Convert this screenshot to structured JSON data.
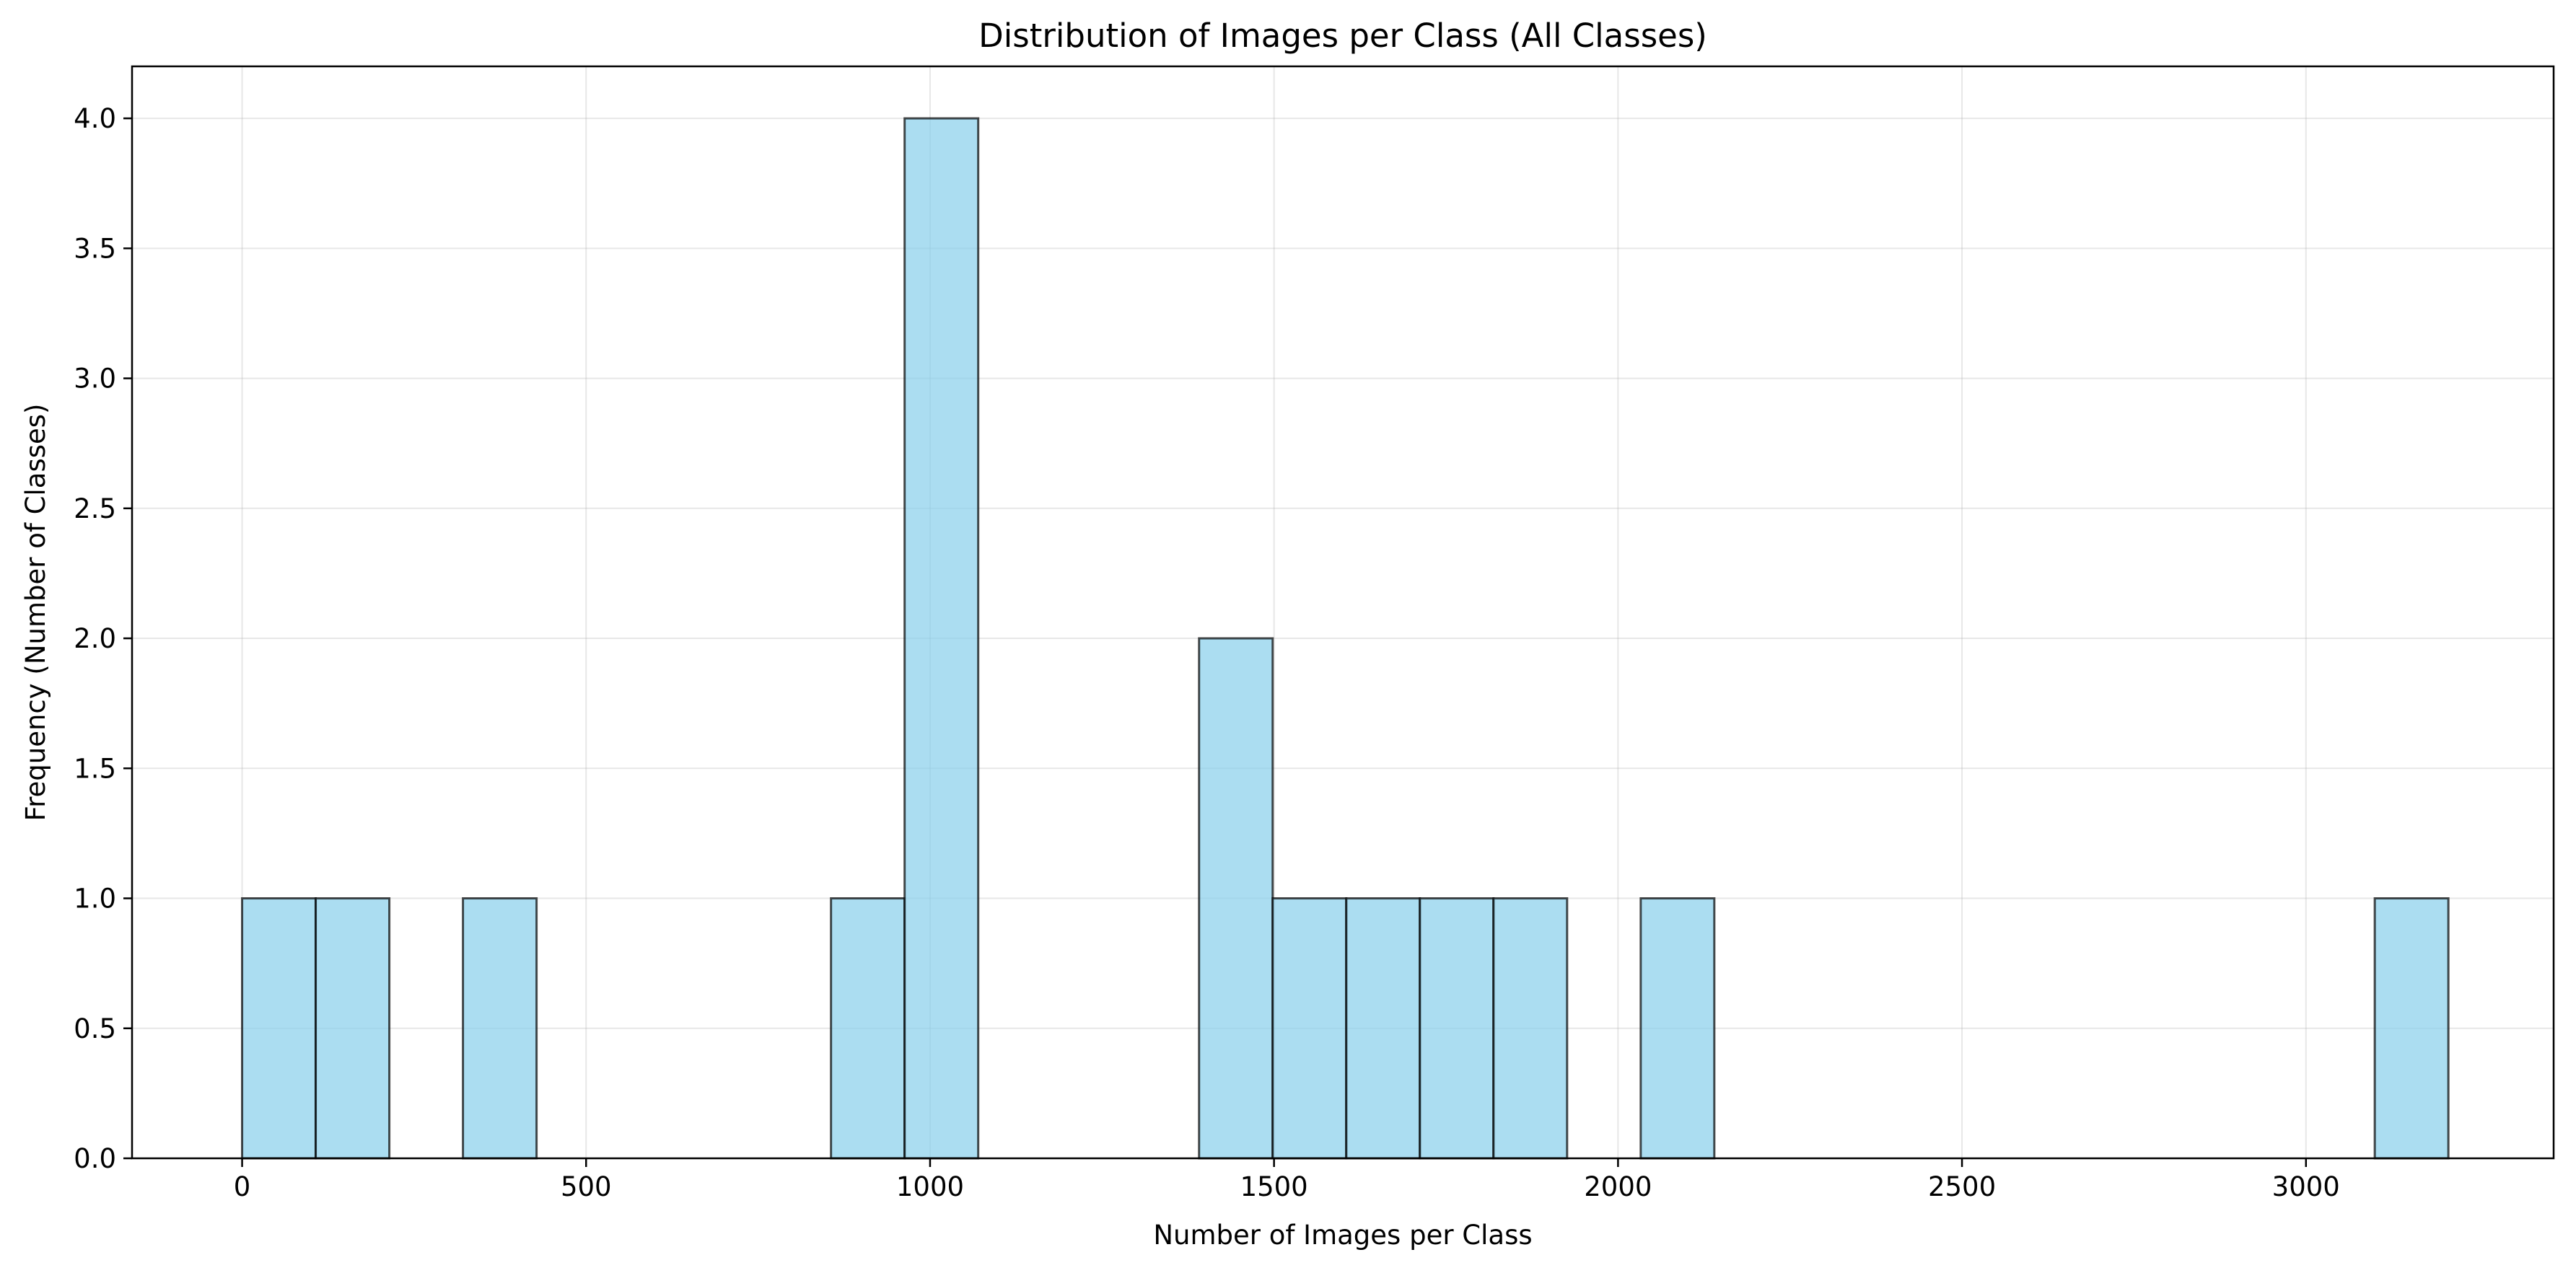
{
  "chart_data": {
    "type": "bar",
    "title": "Distribution of Images per Class (All Classes)",
    "xlabel": "Number of Images per Class",
    "ylabel": "Frequency (Number of Classes)",
    "xlim": [
      -160,
      3360
    ],
    "ylim": [
      0,
      4.2
    ],
    "x_ticks": [
      0,
      500,
      1000,
      1500,
      2000,
      2500,
      3000
    ],
    "x_tick_labels": [
      "0",
      "500",
      "1000",
      "1500",
      "2000",
      "2500",
      "3000"
    ],
    "y_ticks": [
      0,
      0.5,
      1,
      1.5,
      2,
      2.5,
      3,
      3.5,
      4
    ],
    "y_tick_labels": [
      "0.0",
      "0.5",
      "1.0",
      "1.5",
      "2.0",
      "2.5",
      "3.0",
      "3.5",
      "4.0"
    ],
    "grid": true,
    "bar_color": "#87ceeb",
    "edge_color": "#000000",
    "bins": [
      {
        "x0": 0,
        "x1": 107,
        "count": 1
      },
      {
        "x0": 107,
        "x1": 214,
        "count": 1
      },
      {
        "x0": 321,
        "x1": 428,
        "count": 1
      },
      {
        "x0": 856,
        "x1": 963,
        "count": 1
      },
      {
        "x0": 963,
        "x1": 1070,
        "count": 4
      },
      {
        "x0": 1391,
        "x1": 1498,
        "count": 2
      },
      {
        "x0": 1498,
        "x1": 1605,
        "count": 1
      },
      {
        "x0": 1605,
        "x1": 1712,
        "count": 1
      },
      {
        "x0": 1712,
        "x1": 1819,
        "count": 1
      },
      {
        "x0": 1819,
        "x1": 1926,
        "count": 1
      },
      {
        "x0": 2033,
        "x1": 2140,
        "count": 1
      },
      {
        "x0": 3100,
        "x1": 3207,
        "count": 1
      }
    ]
  }
}
